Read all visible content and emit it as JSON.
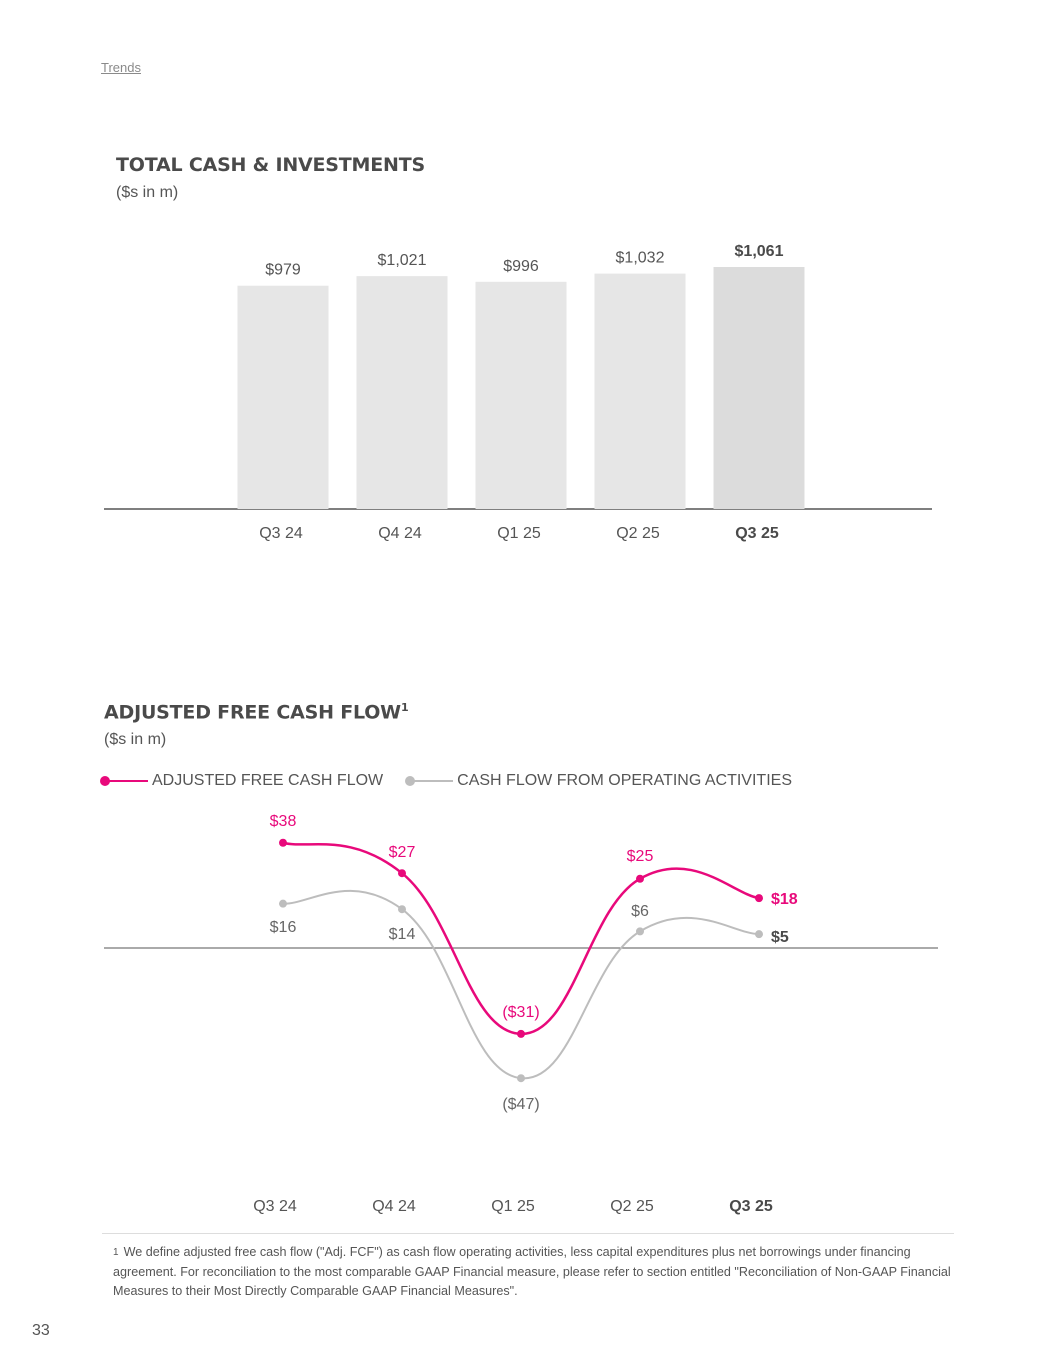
{
  "breadcrumb": "Trends",
  "colors": {
    "accent": "#E8097B",
    "gray_line": "#BDBDBD",
    "bar": "#E6E6E6",
    "bar_current": "#DCDCDC",
    "axis": "#555555"
  },
  "chart_data": [
    {
      "type": "bar",
      "title": "TOTAL CASH & INVESTMENTS",
      "subtitle": "($s in m)",
      "categories": [
        "Q3 24",
        "Q4 24",
        "Q1 25",
        "Q2 25",
        "Q3 25"
      ],
      "values": [
        979,
        1021,
        996,
        1032,
        1061
      ],
      "data_labels": [
        "$979",
        "$1,021",
        "$996",
        "$1,032",
        "$1,061"
      ],
      "highlight_index": 4,
      "grid": false
    },
    {
      "type": "line",
      "title": "ADJUSTED FREE CASH FLOW",
      "title_superscript": "1",
      "subtitle": "($s in m)",
      "categories": [
        "Q3 24",
        "Q4 24",
        "Q1 25",
        "Q2 25",
        "Q3 25"
      ],
      "highlight_index": 4,
      "legend_position": "top-left",
      "series": [
        {
          "name": "ADJUSTED FREE CASH FLOW",
          "color": "#E8097B",
          "values": [
            38,
            27,
            -31,
            25,
            18
          ],
          "labels": [
            "$38",
            "$27",
            "($31)",
            "$25",
            "$18"
          ]
        },
        {
          "name": "CASH FLOW FROM OPERATING ACTIVITIES",
          "color": "#BDBDBD",
          "values": [
            16,
            14,
            -47,
            6,
            5
          ],
          "labels": [
            "$16",
            "$14",
            "($47)",
            "$6",
            "$5"
          ]
        }
      ],
      "grid": false
    }
  ],
  "footnote": {
    "mark": "1",
    "text": "We define adjusted free cash flow (\"Adj. FCF\") as cash flow operating activities, less capital expenditures plus net borrowings under financing agreement. For reconciliation to the most comparable GAAP Financial measure, please refer to section entitled \"Reconciliation of Non-GAAP Financial Measures to their Most Directly Comparable GAAP Financial Measures\"."
  },
  "page_number": "33"
}
